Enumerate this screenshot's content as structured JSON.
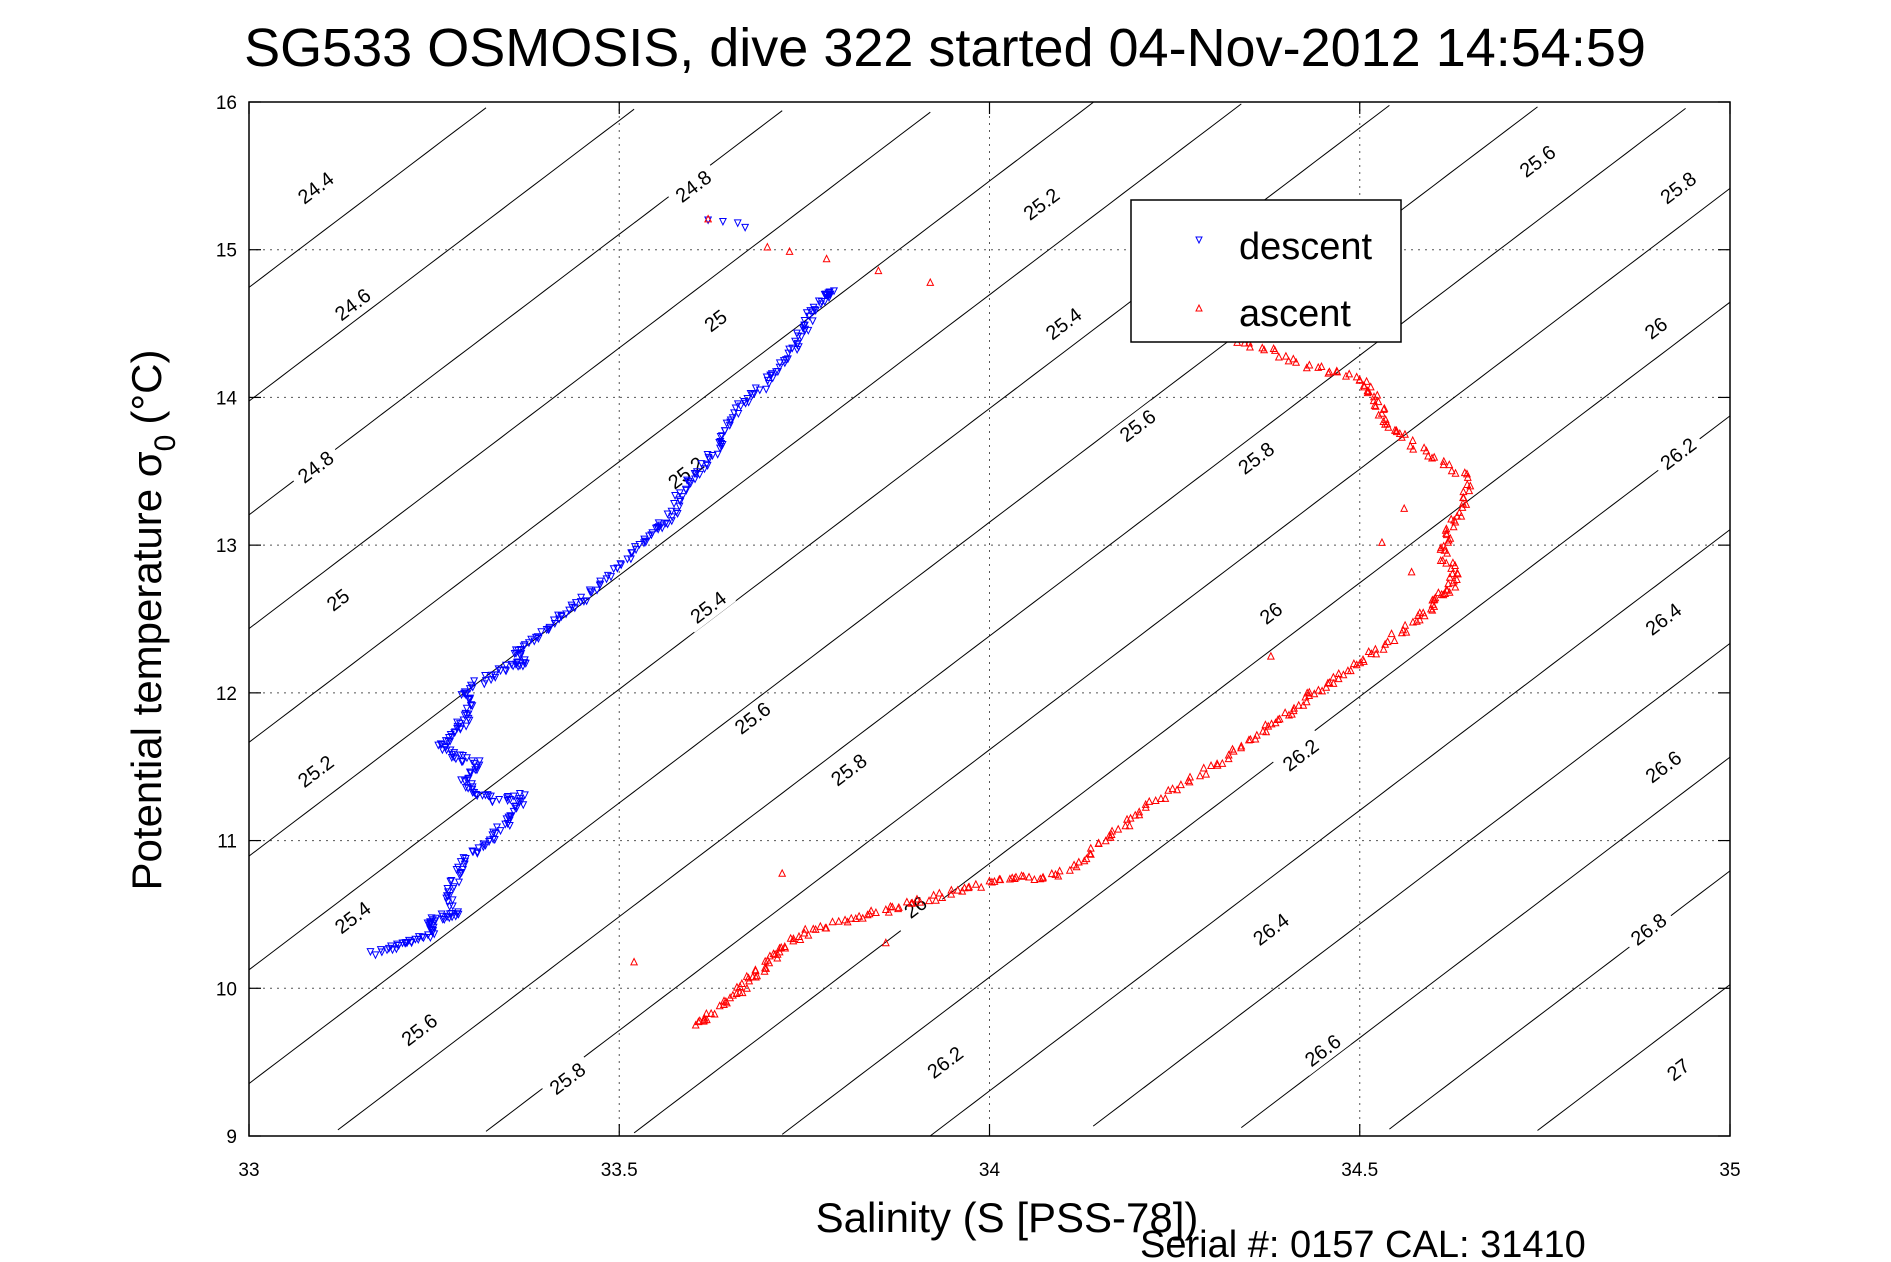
{
  "chart_data": {
    "type": "scatter",
    "title": "SG533 OSMOSIS, dive 322 started 04-Nov-2012 14:54:59",
    "xlabel": "Salinity (S [PSS-78])",
    "ylabel_main": "Potential temperature σ",
    "ylabel_sub": "0",
    "ylabel_unit": "(°C)",
    "footer": "Serial #: 0157  CAL: 31410",
    "xlim": [
      33,
      35
    ],
    "ylim": [
      9,
      16
    ],
    "xticks": [
      33,
      33.5,
      34,
      34.5,
      35
    ],
    "xtick_labels": [
      "33",
      "33.5",
      "34",
      "34.5",
      "35"
    ],
    "yticks": [
      9,
      10,
      11,
      12,
      13,
      14,
      15,
      16
    ],
    "ytick_labels": [
      "9",
      "10",
      "11",
      "12",
      "13",
      "14",
      "15",
      "16"
    ],
    "grid": true,
    "legend_position": "top-right",
    "contours": {
      "levels": [
        24.4,
        24.6,
        24.8,
        25,
        25.2,
        25.4,
        25.6,
        25.8,
        26,
        26.2,
        26.4,
        26.6,
        26.8,
        27
      ],
      "labels": [
        {
          "text": "24.4",
          "s": 33.09,
          "t": 15.42
        },
        {
          "text": "24.6",
          "s": 33.14,
          "t": 14.63
        },
        {
          "text": "24.8",
          "s": 33.09,
          "t": 13.53
        },
        {
          "text": "25",
          "s": 33.12,
          "t": 12.63
        },
        {
          "text": "25.2",
          "s": 33.09,
          "t": 11.47
        },
        {
          "text": "25.4",
          "s": 33.14,
          "t": 10.48
        },
        {
          "text": "25.6",
          "s": 33.23,
          "t": 9.72
        },
        {
          "text": "25.8",
          "s": 33.43,
          "t": 9.39
        },
        {
          "text": "24.8",
          "s": 33.6,
          "t": 15.43
        },
        {
          "text": "25",
          "s": 33.63,
          "t": 14.52
        },
        {
          "text": "25.2",
          "s": 33.59,
          "t": 13.49
        },
        {
          "text": "25.4",
          "s": 33.62,
          "t": 12.58
        },
        {
          "text": "25.6",
          "s": 33.68,
          "t": 11.83
        },
        {
          "text": "25.8",
          "s": 33.81,
          "t": 11.48
        },
        {
          "text": "26",
          "s": 33.9,
          "t": 10.55
        },
        {
          "text": "26.2",
          "s": 33.94,
          "t": 9.5
        },
        {
          "text": "25.2",
          "s": 34.07,
          "t": 15.31
        },
        {
          "text": "25.4",
          "s": 34.1,
          "t": 14.5
        },
        {
          "text": "25.6",
          "s": 34.2,
          "t": 13.81
        },
        {
          "text": "25.8",
          "s": 34.36,
          "t": 13.59
        },
        {
          "text": "26",
          "s": 34.38,
          "t": 12.54
        },
        {
          "text": "26.2",
          "s": 34.42,
          "t": 11.58
        },
        {
          "text": "26.4",
          "s": 34.38,
          "t": 10.4
        },
        {
          "text": "26.6",
          "s": 34.45,
          "t": 9.58
        },
        {
          "text": "25.6",
          "s": 34.74,
          "t": 15.6
        },
        {
          "text": "25.8",
          "s": 34.93,
          "t": 15.42
        },
        {
          "text": "26",
          "s": 34.9,
          "t": 14.47
        },
        {
          "text": "26.2",
          "s": 34.93,
          "t": 13.62
        },
        {
          "text": "26.4",
          "s": 34.91,
          "t": 12.5
        },
        {
          "text": "26.6",
          "s": 34.91,
          "t": 11.5
        },
        {
          "text": "26.8",
          "s": 34.89,
          "t": 10.4
        },
        {
          "text": "27",
          "s": 34.93,
          "t": 9.45
        }
      ]
    },
    "series": [
      {
        "name": "descent",
        "color": "#0000ff",
        "marker": "triangle-down",
        "path": [
          [
            33.17,
            10.23
          ],
          [
            33.2,
            10.29
          ],
          [
            33.22,
            10.32
          ],
          [
            33.25,
            10.38
          ],
          [
            33.24,
            10.44
          ],
          [
            33.26,
            10.48
          ],
          [
            33.28,
            10.5
          ],
          [
            33.27,
            10.62
          ],
          [
            33.28,
            10.75
          ],
          [
            33.29,
            10.88
          ],
          [
            33.32,
            10.98
          ],
          [
            33.34,
            11.08
          ],
          [
            33.36,
            11.2
          ],
          [
            33.37,
            11.3
          ],
          [
            33.33,
            11.28
          ],
          [
            33.3,
            11.32
          ],
          [
            33.29,
            11.42
          ],
          [
            33.31,
            11.52
          ],
          [
            33.28,
            11.57
          ],
          [
            33.26,
            11.63
          ],
          [
            33.27,
            11.72
          ],
          [
            33.29,
            11.8
          ],
          [
            33.3,
            11.9
          ],
          [
            33.29,
            12.0
          ],
          [
            33.32,
            12.1
          ],
          [
            33.35,
            12.17
          ],
          [
            33.37,
            12.2
          ],
          [
            33.36,
            12.28
          ],
          [
            33.39,
            12.38
          ],
          [
            33.42,
            12.5
          ],
          [
            33.44,
            12.6
          ],
          [
            33.47,
            12.72
          ],
          [
            33.5,
            12.87
          ],
          [
            33.53,
            13.0
          ],
          [
            33.55,
            13.1
          ],
          [
            33.57,
            13.18
          ],
          [
            33.58,
            13.33
          ],
          [
            33.6,
            13.45
          ],
          [
            33.62,
            13.58
          ],
          [
            33.64,
            13.7
          ],
          [
            33.65,
            13.85
          ],
          [
            33.67,
            13.98
          ],
          [
            33.7,
            14.1
          ],
          [
            33.72,
            14.22
          ],
          [
            33.74,
            14.35
          ],
          [
            33.75,
            14.47
          ],
          [
            33.76,
            14.58
          ],
          [
            33.78,
            14.68
          ],
          [
            33.79,
            14.72
          ]
        ]
      },
      {
        "name": "ascent",
        "color": "#ff0000",
        "marker": "triangle-up",
        "path": [
          [
            33.6,
            9.75
          ],
          [
            33.63,
            9.85
          ],
          [
            33.66,
            9.98
          ],
          [
            33.68,
            10.08
          ],
          [
            33.7,
            10.18
          ],
          [
            33.72,
            10.28
          ],
          [
            33.75,
            10.38
          ],
          [
            33.8,
            10.45
          ],
          [
            33.85,
            10.52
          ],
          [
            33.9,
            10.58
          ],
          [
            33.95,
            10.65
          ],
          [
            34.0,
            10.72
          ],
          [
            34.05,
            10.75
          ],
          [
            34.1,
            10.78
          ],
          [
            34.14,
            10.95
          ],
          [
            34.18,
            11.1
          ],
          [
            34.22,
            11.25
          ],
          [
            34.27,
            11.42
          ],
          [
            34.32,
            11.55
          ],
          [
            34.36,
            11.72
          ],
          [
            34.4,
            11.85
          ],
          [
            34.43,
            11.97
          ],
          [
            34.46,
            12.08
          ],
          [
            34.5,
            12.2
          ],
          [
            34.54,
            12.35
          ],
          [
            34.58,
            12.5
          ],
          [
            34.6,
            12.62
          ],
          [
            34.62,
            12.7
          ],
          [
            34.63,
            12.8
          ],
          [
            34.61,
            12.95
          ],
          [
            34.62,
            13.1
          ],
          [
            34.64,
            13.25
          ],
          [
            34.65,
            13.45
          ],
          [
            34.6,
            13.6
          ],
          [
            34.55,
            13.75
          ],
          [
            34.53,
            13.88
          ],
          [
            34.52,
            14.02
          ],
          [
            34.5,
            14.12
          ],
          [
            34.44,
            14.2
          ],
          [
            34.38,
            14.32
          ],
          [
            34.31,
            14.42
          ],
          [
            34.27,
            14.48
          ]
        ]
      }
    ],
    "scatter_outliers": {
      "descent": [
        [
          33.62,
          15.2
        ],
        [
          33.64,
          15.19
        ],
        [
          33.66,
          15.18
        ],
        [
          33.67,
          15.15
        ]
      ],
      "ascent": [
        [
          33.62,
          15.21
        ],
        [
          33.7,
          15.02
        ],
        [
          33.73,
          14.99
        ],
        [
          33.78,
          14.94
        ],
        [
          33.85,
          14.86
        ],
        [
          33.92,
          14.78
        ],
        [
          33.52,
          10.18
        ],
        [
          33.86,
          10.31
        ],
        [
          33.72,
          10.78
        ],
        [
          34.38,
          12.25
        ],
        [
          34.53,
          13.02
        ],
        [
          34.56,
          13.25
        ],
        [
          34.57,
          12.82
        ]
      ]
    }
  }
}
